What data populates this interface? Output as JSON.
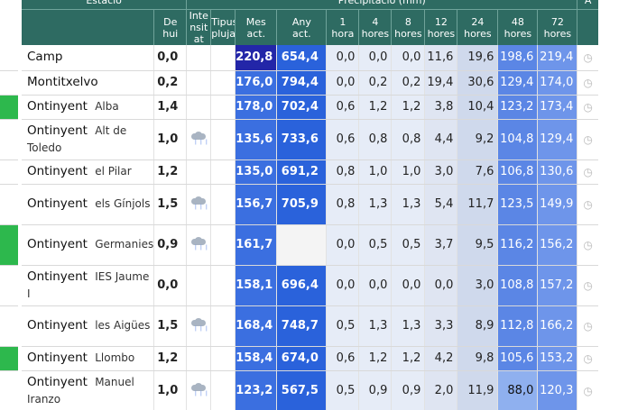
{
  "header": {
    "estacio": "Estació",
    "precipitacio": "Precipitació (mm)",
    "a": "A",
    "cols": {
      "de_hui": "De hui",
      "intensitat": "Intensitat",
      "tipus_pluja": "Tipus pluja",
      "mes_act": "Mes act.",
      "any_act": "Any act.",
      "h1": "1 hora",
      "h4": "4 hores",
      "h8": "8 hores",
      "h12": "12 hores",
      "h24": "24 hores",
      "h48": "48 hores",
      "h72": "72 hores"
    }
  },
  "colors": {
    "header_bg": "#2e6b62",
    "mes_high": "#2326a8",
    "mes_normal": "#3b6fe0",
    "any": "#2a62db",
    "active_marker": "#2db84d"
  },
  "rows": [
    {
      "name": "Camp",
      "sub": "",
      "marker": false,
      "de_hui": "0,0",
      "rain": false,
      "mes": "220,8",
      "mes_dark": true,
      "any": "654,4",
      "h1": "0,0",
      "h4": "0,0",
      "h8": "0,0",
      "h12": "11,6",
      "h24": "19,6",
      "h48": "198,6",
      "h72": "219,4"
    },
    {
      "name": "Montitxelvo",
      "sub": "",
      "marker": false,
      "de_hui": "0,2",
      "rain": false,
      "mes": "176,0",
      "mes_dark": false,
      "any": "794,4",
      "h1": "0,0",
      "h4": "0,2",
      "h8": "0,2",
      "h12": "19,4",
      "h24": "30,6",
      "h48": "129,4",
      "h72": "174,0"
    },
    {
      "name": "Ontinyent",
      "sub": "Alba",
      "marker": true,
      "de_hui": "1,4",
      "rain": false,
      "mes": "178,0",
      "mes_dark": false,
      "any": "702,4",
      "h1": "0,6",
      "h4": "1,2",
      "h8": "1,2",
      "h12": "3,8",
      "h24": "10,4",
      "h48": "123,2",
      "h72": "173,4"
    },
    {
      "name": "Ontinyent",
      "sub": "Alt de Toledo",
      "marker": false,
      "de_hui": "1,0",
      "rain": true,
      "mes": "135,6",
      "mes_dark": false,
      "any": "733,6",
      "h1": "0,6",
      "h4": "0,8",
      "h8": "0,8",
      "h12": "4,4",
      "h24": "9,2",
      "h48": "104,8",
      "h72": "129,4"
    },
    {
      "name": "Ontinyent",
      "sub": "el Pilar",
      "marker": false,
      "de_hui": "1,2",
      "rain": false,
      "mes": "135,0",
      "mes_dark": false,
      "any": "691,2",
      "h1": "0,8",
      "h4": "1,0",
      "h8": "1,0",
      "h12": "3,0",
      "h24": "7,6",
      "h48": "106,8",
      "h72": "130,6"
    },
    {
      "name": "Ontinyent",
      "sub": "els Gínjols",
      "marker": false,
      "de_hui": "1,5",
      "rain": true,
      "mes": "156,7",
      "mes_dark": false,
      "any": "705,9",
      "h1": "0,8",
      "h4": "1,3",
      "h8": "1,3",
      "h12": "5,4",
      "h24": "11,7",
      "h48": "123,5",
      "h72": "149,9"
    },
    {
      "name": "Ontinyent",
      "sub": "Germanies",
      "marker": true,
      "de_hui": "0,9",
      "rain": true,
      "mes": "161,7",
      "mes_dark": false,
      "any": "",
      "h1": "0,0",
      "h4": "0,5",
      "h8": "0,5",
      "h12": "3,7",
      "h24": "9,5",
      "h48": "116,2",
      "h72": "156,2"
    },
    {
      "name": "Ontinyent",
      "sub": "IES Jaume I",
      "marker": false,
      "de_hui": "0,0",
      "rain": false,
      "mes": "158,1",
      "mes_dark": false,
      "any": "696,4",
      "h1": "0,0",
      "h4": "0,0",
      "h8": "0,0",
      "h12": "0,0",
      "h24": "3,0",
      "h48": "108,8",
      "h72": "157,2"
    },
    {
      "name": "Ontinyent",
      "sub": "les Aigües",
      "marker": false,
      "de_hui": "1,5",
      "rain": true,
      "mes": "168,4",
      "mes_dark": false,
      "any": "748,7",
      "h1": "0,5",
      "h4": "1,3",
      "h8": "1,3",
      "h12": "3,3",
      "h24": "8,9",
      "h48": "112,8",
      "h72": "166,2"
    },
    {
      "name": "Ontinyent",
      "sub": "Llombo",
      "marker": true,
      "de_hui": "1,2",
      "rain": false,
      "mes": "158,4",
      "mes_dark": false,
      "any": "674,0",
      "h1": "0,6",
      "h4": "1,2",
      "h8": "1,2",
      "h12": "4,2",
      "h24": "9,8",
      "h48": "105,6",
      "h72": "153,2"
    },
    {
      "name": "Ontinyent",
      "sub": "Manuel Iranzo",
      "marker": false,
      "de_hui": "1,0",
      "rain": true,
      "mes": "123,2",
      "mes_dark": false,
      "any": "567,5",
      "h1": "0,5",
      "h4": "0,9",
      "h8": "0,9",
      "h12": "2,0",
      "h24": "11,9",
      "h48": "88,0",
      "h72": "120,3",
      "h48_light": true
    }
  ]
}
